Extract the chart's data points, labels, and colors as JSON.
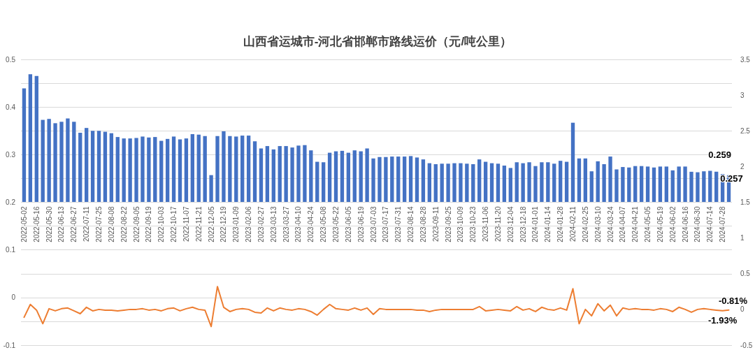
{
  "chart_data": [
    {
      "type": "bar",
      "title": "山西省运城市-河北省邯郸市路线运价（元/吨公里）",
      "categories": [
        "2022-05-02",
        null,
        "2022-05-16",
        null,
        "2022-05-30",
        null,
        "2022-06-13",
        null,
        "2022-06-27",
        null,
        "2022-07-11",
        null,
        "2022-07-25",
        null,
        "2022-08-08",
        null,
        "2022-08-22",
        null,
        "2022-09-05",
        null,
        "2022-09-19",
        null,
        "2022-10-03",
        null,
        "2022-10-17",
        null,
        "2022-11-07",
        null,
        "2022-11-21",
        null,
        "2022-12-05",
        null,
        "2022-12-19",
        null,
        "2023-01-09",
        null,
        "2023-02-06",
        null,
        "2023-02-27",
        null,
        "2023-03-13",
        null,
        "2023-03-27",
        null,
        "2023-04-10",
        null,
        "2023-04-24",
        null,
        "2023-05-08",
        null,
        "2023-05-22",
        null,
        "2023-06-05",
        null,
        "2023-06-19",
        null,
        "2023-07-03",
        null,
        "2023-07-17",
        null,
        "2023-07-31",
        null,
        "2023-08-14",
        null,
        "2023-08-28",
        null,
        "2023-09-11",
        null,
        "2023-09-25",
        null,
        "2023-10-09",
        null,
        "2023-10-23",
        null,
        "2023-11-06",
        null,
        "2023-11-20",
        null,
        "2023-12-04",
        null,
        "2023-12-18",
        null,
        "2024-01-01",
        null,
        "2024-01-14",
        null,
        "2024-01-28",
        null,
        "2024-02-11",
        null,
        "2024-02-25",
        null,
        "2024-03-10",
        null,
        "2024-03-24",
        null,
        "2024-04-07",
        null,
        "2024-04-21",
        null,
        "2024-05-05",
        null,
        "2024-05-19",
        null,
        "2024-06-02",
        null,
        "2024-06-16",
        null,
        "2024-06-30",
        null,
        "2024-07-14",
        null,
        "2024-07-28",
        null
      ],
      "series": [
        {
          "type": "bar",
          "color": "#4472c4",
          "values": [
            0.439,
            0.469,
            0.465,
            0.373,
            0.375,
            0.366,
            0.369,
            0.376,
            0.369,
            0.346,
            0.356,
            0.35,
            0.35,
            0.348,
            0.345,
            0.337,
            0.334,
            0.334,
            0.335,
            0.338,
            0.336,
            0.337,
            0.329,
            0.333,
            0.338,
            0.332,
            0.334,
            0.343,
            0.342,
            0.339,
            0.257,
            0.339,
            0.349,
            0.339,
            0.338,
            0.34,
            0.34,
            0.328,
            0.313,
            0.318,
            0.311,
            0.318,
            0.318,
            0.315,
            0.319,
            0.32,
            0.309,
            0.285,
            0.284,
            0.304,
            0.307,
            0.308,
            0.304,
            0.309,
            0.307,
            0.313,
            0.292,
            0.295,
            0.295,
            0.296,
            0.296,
            0.296,
            0.297,
            0.294,
            0.29,
            0.282,
            0.28,
            0.281,
            0.281,
            0.282,
            0.282,
            0.281,
            0.28,
            0.29,
            0.285,
            0.282,
            0.281,
            0.277,
            0.272,
            0.284,
            0.282,
            0.284,
            0.276,
            0.284,
            0.284,
            0.281,
            0.287,
            0.285,
            0.367,
            0.292,
            0.292,
            0.265,
            0.286,
            0.28,
            0.296,
            0.269,
            0.274,
            0.273,
            0.276,
            0.276,
            0.275,
            0.273,
            0.275,
            0.275,
            0.267,
            0.275,
            0.275,
            0.264,
            0.263,
            0.265,
            0.266,
            0.264,
            0.259,
            0.257
          ],
          "value_labels": [
            null,
            null,
            null,
            null,
            null,
            null,
            null,
            null,
            null,
            null,
            null,
            null,
            null,
            null,
            null,
            null,
            null,
            null,
            null,
            null,
            null,
            null,
            null,
            null,
            null,
            null,
            null,
            null,
            null,
            null,
            null,
            null,
            null,
            null,
            null,
            null,
            null,
            null,
            null,
            null,
            null,
            null,
            null,
            null,
            null,
            null,
            null,
            null,
            null,
            null,
            null,
            null,
            null,
            null,
            null,
            null,
            null,
            null,
            null,
            null,
            null,
            null,
            null,
            null,
            null,
            null,
            null,
            null,
            null,
            null,
            null,
            null,
            null,
            null,
            null,
            null,
            null,
            null,
            null,
            null,
            null,
            null,
            null,
            null,
            null,
            null,
            null,
            null,
            null,
            null,
            null,
            null,
            null,
            null,
            null,
            null,
            null,
            null,
            null,
            null,
            null,
            null,
            null,
            null,
            null,
            null,
            null,
            null,
            null,
            null,
            null,
            null,
            "0.259",
            "0.257"
          ]
        }
      ],
      "ylim": [
        0.2,
        0.5
      ],
      "yticks": [
        0.2,
        0.3,
        0.4,
        0.5
      ],
      "grid": "y"
    },
    {
      "type": "line",
      "categories": [
        null,
        null,
        null,
        null,
        null,
        null,
        null,
        null,
        null,
        null,
        null,
        null,
        null,
        null,
        null,
        null,
        null,
        null,
        null,
        null,
        null,
        null,
        null,
        null,
        null,
        null,
        null,
        null,
        null,
        null,
        null,
        null,
        null,
        null,
        null,
        null,
        null,
        null,
        null,
        null,
        null,
        null,
        null,
        null,
        null,
        null,
        null,
        null,
        null,
        null,
        null,
        null,
        null,
        null,
        null,
        null,
        null,
        null,
        null,
        null,
        null,
        null,
        null,
        null,
        null,
        null,
        null,
        null,
        null,
        null,
        null,
        null,
        null,
        null,
        null,
        null,
        null,
        null,
        null,
        null,
        null,
        null,
        null,
        null,
        null,
        null,
        null,
        null,
        null,
        null,
        null,
        null,
        null,
        null,
        null,
        null,
        null,
        null,
        null,
        null,
        null,
        null,
        null,
        null,
        null,
        null,
        null,
        null,
        null,
        null,
        null,
        null,
        null,
        null
      ],
      "series": [
        {
          "type": "line",
          "axis": "y2",
          "color": "#ed7d31",
          "values": [
            -0.11,
            0.07,
            -0.01,
            -0.2,
            0.01,
            -0.02,
            0.01,
            0.02,
            -0.02,
            -0.06,
            0.03,
            -0.02,
            0,
            -0.01,
            -0.01,
            -0.02,
            -0.01,
            0,
            0,
            0.01,
            -0.01,
            0,
            -0.02,
            0.01,
            0.02,
            -0.02,
            0.01,
            0.03,
            0,
            -0.01,
            -0.24,
            0.32,
            0.03,
            -0.03,
            0,
            0.01,
            0,
            -0.04,
            -0.05,
            0.02,
            -0.02,
            0.02,
            0,
            -0.01,
            0.01,
            0,
            -0.03,
            -0.08,
            0,
            0.07,
            0.01,
            0,
            -0.01,
            0.02,
            -0.01,
            0.02,
            -0.07,
            0.01,
            0,
            0,
            0,
            0,
            0,
            -0.01,
            -0.01,
            -0.03,
            -0.01,
            0,
            0,
            0,
            0,
            0,
            0,
            0.04,
            -0.02,
            -0.01,
            0,
            -0.01,
            -0.02,
            0.04,
            -0.01,
            0.01,
            -0.03,
            0.03,
            0,
            -0.01,
            0.02,
            -0.01,
            0.29,
            -0.2,
            0,
            -0.09,
            0.08,
            -0.02,
            0.06,
            -0.09,
            0.02,
            0,
            0.01,
            0,
            0,
            -0.01,
            0.01,
            0,
            -0.03,
            0.03,
            0,
            -0.04,
            0,
            0.01,
            0,
            -0.01,
            -0.0193,
            -0.0081
          ],
          "value_labels": [
            null,
            null,
            null,
            null,
            null,
            null,
            null,
            null,
            null,
            null,
            null,
            null,
            null,
            null,
            null,
            null,
            null,
            null,
            null,
            null,
            null,
            null,
            null,
            null,
            null,
            null,
            null,
            null,
            null,
            null,
            null,
            null,
            null,
            null,
            null,
            null,
            null,
            null,
            null,
            null,
            null,
            null,
            null,
            null,
            null,
            null,
            null,
            null,
            null,
            null,
            null,
            null,
            null,
            null,
            null,
            null,
            null,
            null,
            null,
            null,
            null,
            null,
            null,
            null,
            null,
            null,
            null,
            null,
            null,
            null,
            null,
            null,
            null,
            null,
            null,
            null,
            null,
            null,
            null,
            null,
            null,
            null,
            null,
            null,
            null,
            null,
            null,
            null,
            null,
            null,
            null,
            null,
            null,
            null,
            null,
            null,
            null,
            null,
            null,
            null,
            null,
            null,
            null,
            null,
            null,
            null,
            null,
            null,
            null,
            null,
            null,
            null,
            "-1.93%",
            "-0.81%"
          ]
        }
      ],
      "ylim": [
        -0.1,
        0.2
      ],
      "yticks": [
        -0.1,
        0,
        0.1
      ],
      "y2lim": [
        -0.5,
        3.5
      ],
      "y2ticks": [
        -0.5,
        0,
        0.5,
        1,
        1.5,
        2,
        2.5,
        3,
        3.5
      ],
      "grid": "y",
      "marker": "none",
      "line_style": "solid",
      "tick_labels": "y"
    }
  ]
}
